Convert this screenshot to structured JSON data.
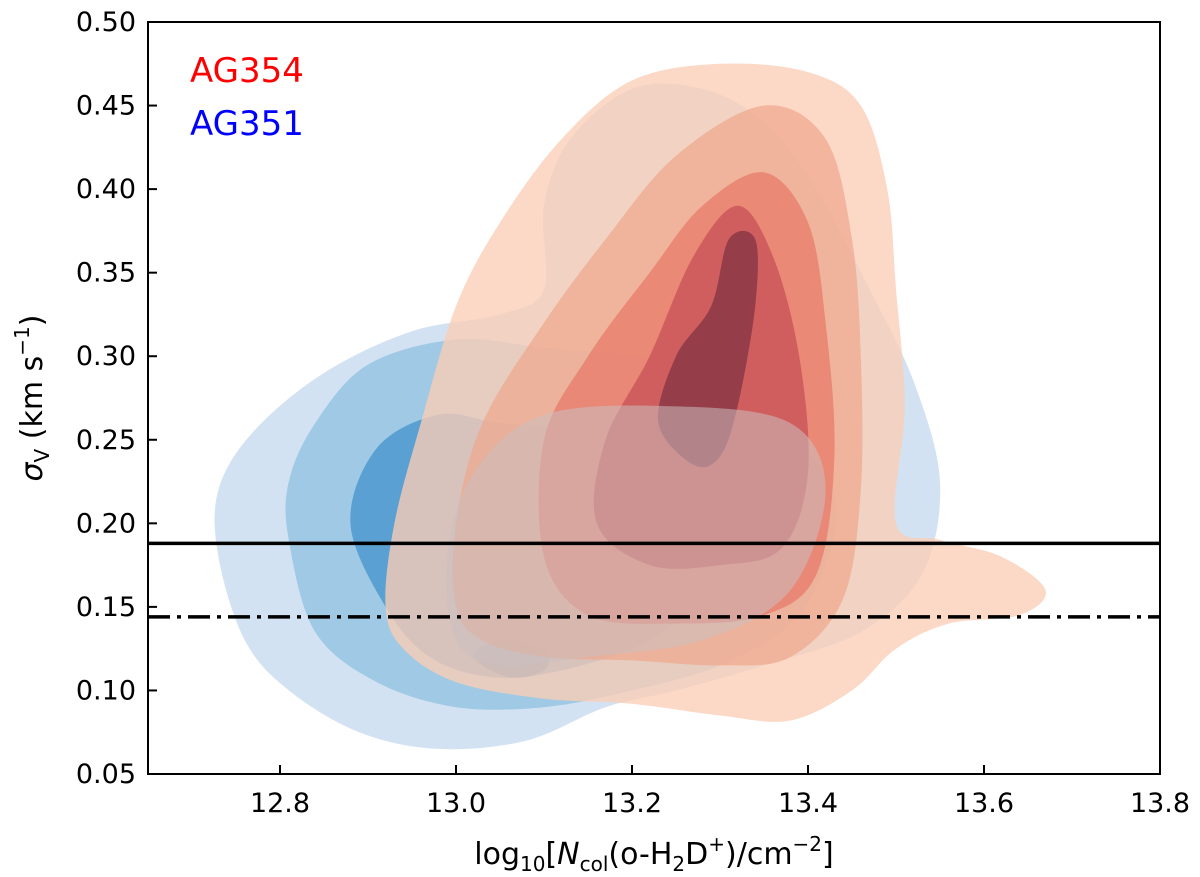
{
  "chart_data": {
    "type": "contour",
    "xlabel_parts": {
      "log": "log",
      "log_sub": "10",
      "open": "[",
      "N": "N",
      "N_sub": "col",
      "species_a": "(o-H",
      "species_sub": "2",
      "species_b": "D",
      "plus": "+",
      "unit": ")/cm",
      "exp": "−2",
      "close": "]"
    },
    "ylabel_parts": {
      "sigma": "σ",
      "sigma_sub": "V",
      "unit_open": " (km s",
      "exp": "−1",
      "unit_close": ")"
    },
    "xlim": [
      12.65,
      13.8
    ],
    "ylim": [
      0.05,
      0.5
    ],
    "xticks": [
      "12.8",
      "13.0",
      "13.2",
      "13.4",
      "13.6",
      "13.8"
    ],
    "yticks": [
      "0.05",
      "0.10",
      "0.15",
      "0.20",
      "0.25",
      "0.30",
      "0.35",
      "0.40",
      "0.45",
      "0.50"
    ],
    "hlines": [
      {
        "name": "solid-reference-line",
        "y": 0.188,
        "style": "solid"
      },
      {
        "name": "dashdot-reference-line",
        "y": 0.144,
        "style": "dashdot"
      }
    ],
    "series": [
      {
        "name": "AG351",
        "color": "#0000ff",
        "levels": [
          {
            "color": "#d2e2f2",
            "opacity": 1,
            "points": [
              [
                12.73,
                0.18
              ],
              [
                12.76,
                0.13
              ],
              [
                12.81,
                0.1
              ],
              [
                12.89,
                0.075
              ],
              [
                12.98,
                0.065
              ],
              [
                13.08,
                0.07
              ],
              [
                13.17,
                0.09
              ],
              [
                13.25,
                0.1
              ],
              [
                13.35,
                0.115
              ],
              [
                13.46,
                0.135
              ],
              [
                13.53,
                0.17
              ],
              [
                13.55,
                0.225
              ],
              [
                13.52,
                0.285
              ],
              [
                13.47,
                0.34
              ],
              [
                13.41,
                0.4
              ],
              [
                13.35,
                0.44
              ],
              [
                13.28,
                0.46
              ],
              [
                13.2,
                0.46
              ],
              [
                13.13,
                0.43
              ],
              [
                13.1,
                0.39
              ],
              [
                13.1,
                0.34
              ],
              [
                13.05,
                0.325
              ],
              [
                12.95,
                0.315
              ],
              [
                12.85,
                0.29
              ],
              [
                12.77,
                0.255
              ],
              [
                12.73,
                0.22
              ]
            ]
          },
          {
            "color": "#9fc9e4",
            "opacity": 1,
            "points": [
              [
                12.81,
                0.19
              ],
              [
                12.84,
                0.135
              ],
              [
                12.91,
                0.105
              ],
              [
                13.0,
                0.09
              ],
              [
                13.1,
                0.09
              ],
              [
                13.2,
                0.1
              ],
              [
                13.3,
                0.115
              ],
              [
                13.38,
                0.14
              ],
              [
                13.42,
                0.175
              ],
              [
                13.43,
                0.215
              ],
              [
                13.38,
                0.255
              ],
              [
                13.3,
                0.285
              ],
              [
                13.2,
                0.3
              ],
              [
                13.1,
                0.305
              ],
              [
                13.0,
                0.31
              ],
              [
                12.9,
                0.295
              ],
              [
                12.84,
                0.26
              ],
              [
                12.81,
                0.225
              ]
            ]
          },
          {
            "color": "#5aa0d2",
            "opacity": 1,
            "points": [
              [
                12.88,
                0.2
              ],
              [
                12.92,
                0.15
              ],
              [
                12.97,
                0.12
              ],
              [
                13.04,
                0.108
              ],
              [
                13.12,
                0.112
              ],
              [
                13.22,
                0.13
              ],
              [
                13.28,
                0.16
              ],
              [
                13.3,
                0.2
              ],
              [
                13.25,
                0.235
              ],
              [
                13.15,
                0.255
              ],
              [
                13.05,
                0.26
              ],
              [
                12.98,
                0.265
              ],
              [
                12.91,
                0.245
              ]
            ]
          },
          {
            "color": "#2f7ebf",
            "opacity": 1,
            "points": [
              [
                13.02,
                0.12
              ],
              [
                13.06,
                0.108
              ],
              [
                13.1,
                0.112
              ],
              [
                13.1,
                0.125
              ],
              [
                13.05,
                0.13
              ]
            ]
          }
        ]
      },
      {
        "name": "AG354",
        "color": "#ff0000",
        "levels": [
          {
            "color": "#fbcdb6",
            "opacity": 0.78,
            "points": [
              [
                12.92,
                0.15
              ],
              [
                12.94,
                0.125
              ],
              [
                13.0,
                0.105
              ],
              [
                13.1,
                0.095
              ],
              [
                13.2,
                0.092
              ],
              [
                13.3,
                0.085
              ],
              [
                13.38,
                0.082
              ],
              [
                13.45,
                0.1
              ],
              [
                13.5,
                0.125
              ],
              [
                13.56,
                0.14
              ],
              [
                13.64,
                0.145
              ],
              [
                13.67,
                0.16
              ],
              [
                13.62,
                0.18
              ],
              [
                13.55,
                0.19
              ],
              [
                13.5,
                0.2
              ],
              [
                13.51,
                0.27
              ],
              [
                13.5,
                0.34
              ],
              [
                13.49,
                0.4
              ],
              [
                13.46,
                0.45
              ],
              [
                13.4,
                0.47
              ],
              [
                13.3,
                0.475
              ],
              [
                13.2,
                0.465
              ],
              [
                13.12,
                0.43
              ],
              [
                13.05,
                0.38
              ],
              [
                13.0,
                0.33
              ],
              [
                12.96,
                0.26
              ],
              [
                12.93,
                0.2
              ]
            ]
          },
          {
            "color": "#f0a68b",
            "opacity": 0.7,
            "points": [
              [
                13.0,
                0.15
              ],
              [
                13.03,
                0.13
              ],
              [
                13.1,
                0.12
              ],
              [
                13.2,
                0.118
              ],
              [
                13.3,
                0.115
              ],
              [
                13.38,
                0.12
              ],
              [
                13.44,
                0.155
              ],
              [
                13.46,
                0.22
              ],
              [
                13.46,
                0.3
              ],
              [
                13.45,
                0.37
              ],
              [
                13.42,
                0.43
              ],
              [
                13.35,
                0.45
              ],
              [
                13.25,
                0.42
              ],
              [
                13.17,
                0.37
              ],
              [
                13.1,
                0.32
              ],
              [
                13.03,
                0.26
              ],
              [
                13.0,
                0.2
              ]
            ]
          },
          {
            "color": "#e87464",
            "opacity": 0.68,
            "points": [
              [
                13.1,
                0.18
              ],
              [
                13.15,
                0.145
              ],
              [
                13.25,
                0.14
              ],
              [
                13.35,
                0.145
              ],
              [
                13.41,
                0.17
              ],
              [
                13.43,
                0.24
              ],
              [
                13.42,
                0.32
              ],
              [
                13.4,
                0.38
              ],
              [
                13.35,
                0.41
              ],
              [
                13.28,
                0.39
              ],
              [
                13.22,
                0.35
              ],
              [
                13.15,
                0.3
              ],
              [
                13.1,
                0.25
              ]
            ]
          },
          {
            "color": "#c84d55",
            "opacity": 0.72,
            "points": [
              [
                13.16,
                0.2
              ],
              [
                13.22,
                0.175
              ],
              [
                13.3,
                0.175
              ],
              [
                13.37,
                0.185
              ],
              [
                13.4,
                0.23
              ],
              [
                13.39,
                0.3
              ],
              [
                13.36,
                0.36
              ],
              [
                13.32,
                0.39
              ],
              [
                13.27,
                0.36
              ],
              [
                13.22,
                0.3
              ],
              [
                13.17,
                0.25
              ]
            ]
          },
          {
            "color": "#893646",
            "opacity": 0.82,
            "points": [
              [
                13.23,
                0.26
              ],
              [
                13.27,
                0.235
              ],
              [
                13.3,
                0.24
              ],
              [
                13.32,
                0.27
              ],
              [
                13.34,
                0.33
              ],
              [
                13.34,
                0.37
              ],
              [
                13.31,
                0.37
              ],
              [
                13.29,
                0.33
              ],
              [
                13.25,
                0.3
              ]
            ]
          }
        ]
      },
      {
        "name": "overlap-haze",
        "color": "#c8bdbd",
        "levels": [
          {
            "color": "#cbbfbf",
            "opacity": 0.55,
            "points": [
              [
                13.0,
                0.13
              ],
              [
                13.05,
                0.115
              ],
              [
                13.15,
                0.12
              ],
              [
                13.28,
                0.13
              ],
              [
                13.38,
                0.16
              ],
              [
                13.42,
                0.22
              ],
              [
                13.38,
                0.26
              ],
              [
                13.25,
                0.27
              ],
              [
                13.1,
                0.265
              ],
              [
                13.02,
                0.23
              ],
              [
                12.99,
                0.18
              ]
            ]
          }
        ]
      }
    ]
  },
  "legend": [
    {
      "label": "AG354",
      "color": "#ff0000"
    },
    {
      "label": "AG351",
      "color": "#0000ff"
    }
  ]
}
